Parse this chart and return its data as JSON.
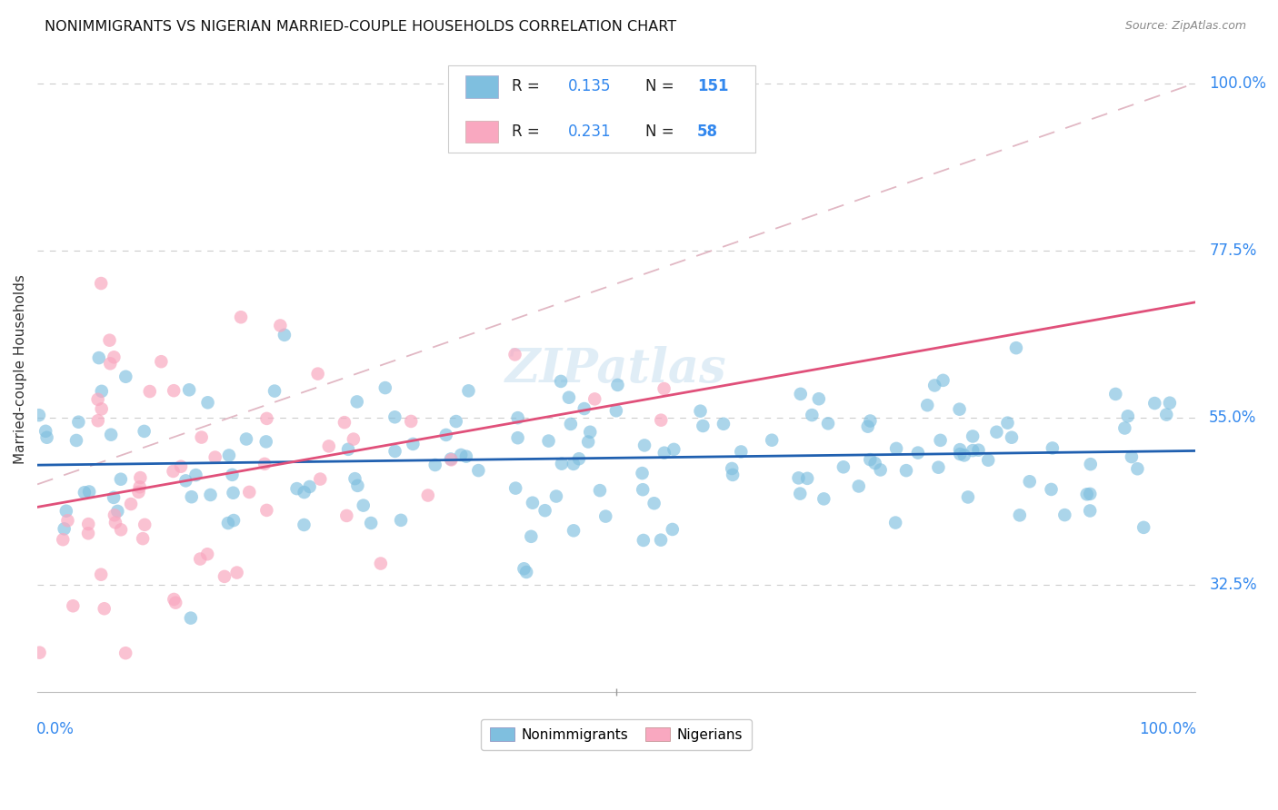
{
  "title": "NONIMMIGRANTS VS NIGERIAN MARRIED-COUPLE HOUSEHOLDS CORRELATION CHART",
  "source": "Source: ZipAtlas.com",
  "ylabel": "Married-couple Households",
  "ytick_str": [
    "100.0%",
    "77.5%",
    "55.0%",
    "32.5%"
  ],
  "ytick_vals": [
    1.0,
    0.775,
    0.55,
    0.325
  ],
  "r_blue": 0.135,
  "n_blue": 151,
  "r_pink": 0.231,
  "n_pink": 58,
  "color_blue": "#7fbfdf",
  "color_pink": "#f9a8c0",
  "color_blue_line": "#2060b0",
  "color_pink_line": "#e0507a",
  "color_diag": "#d8a0b0",
  "background_color": "#ffffff",
  "grid_color": "#cccccc",
  "xlim": [
    0.0,
    1.0
  ],
  "ylim": [
    0.18,
    1.05
  ]
}
